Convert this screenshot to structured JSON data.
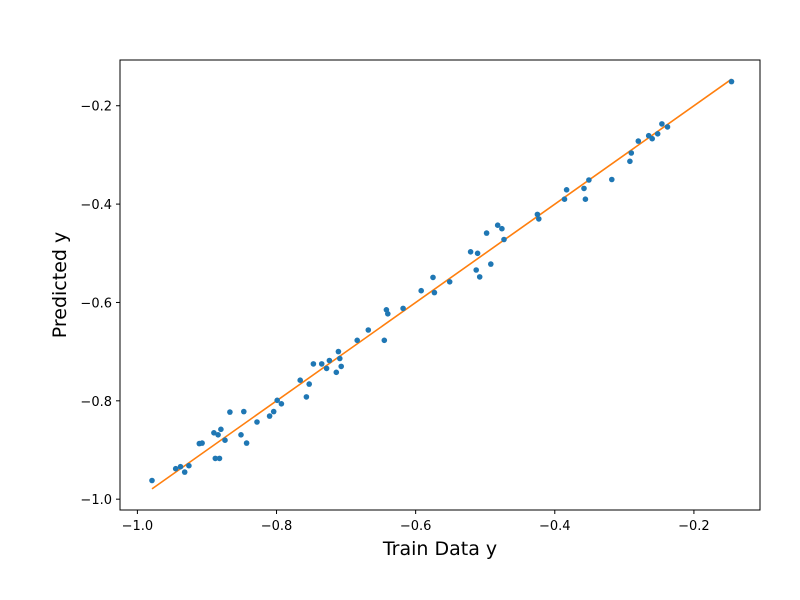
{
  "chart_data": {
    "type": "scatter",
    "xlabel": "Train Data y",
    "ylabel": "Predicted y",
    "xlim": [
      -1.025,
      -0.105
    ],
    "ylim": [
      -1.022,
      -0.107
    ],
    "xticks": [
      -1.0,
      -0.8,
      -0.6,
      -0.4,
      -0.2
    ],
    "xtick_labels": [
      "−1.0",
      "−0.8",
      "−0.6",
      "−0.4",
      "−0.2"
    ],
    "yticks": [
      -1.0,
      -0.8,
      -0.6,
      -0.4,
      -0.2
    ],
    "ytick_labels": [
      "−1.0",
      "−0.8",
      "−0.6",
      "−0.4",
      "−0.2"
    ],
    "grid": false,
    "series": [
      {
        "kind": "scatter",
        "color": "#1f77b4",
        "points": [
          [
            -0.979,
            -0.962
          ],
          [
            -0.945,
            -0.938
          ],
          [
            -0.938,
            -0.934
          ],
          [
            -0.932,
            -0.945
          ],
          [
            -0.926,
            -0.932
          ],
          [
            -0.911,
            -0.887
          ],
          [
            -0.907,
            -0.886
          ],
          [
            -0.89,
            -0.865
          ],
          [
            -0.888,
            -0.917
          ],
          [
            -0.884,
            -0.869
          ],
          [
            -0.882,
            -0.917
          ],
          [
            -0.88,
            -0.858
          ],
          [
            -0.874,
            -0.88
          ],
          [
            -0.867,
            -0.823
          ],
          [
            -0.851,
            -0.869
          ],
          [
            -0.847,
            -0.822
          ],
          [
            -0.843,
            -0.886
          ],
          [
            -0.828,
            -0.843
          ],
          [
            -0.81,
            -0.831
          ],
          [
            -0.804,
            -0.822
          ],
          [
            -0.799,
            -0.799
          ],
          [
            -0.793,
            -0.806
          ],
          [
            -0.766,
            -0.758
          ],
          [
            -0.757,
            -0.792
          ],
          [
            -0.753,
            -0.766
          ],
          [
            -0.747,
            -0.725
          ],
          [
            -0.735,
            -0.725
          ],
          [
            -0.728,
            -0.734
          ],
          [
            -0.724,
            -0.718
          ],
          [
            -0.714,
            -0.742
          ],
          [
            -0.711,
            -0.7
          ],
          [
            -0.709,
            -0.714
          ],
          [
            -0.707,
            -0.73
          ],
          [
            -0.684,
            -0.677
          ],
          [
            -0.668,
            -0.656
          ],
          [
            -0.645,
            -0.677
          ],
          [
            -0.642,
            -0.615
          ],
          [
            -0.64,
            -0.623
          ],
          [
            -0.618,
            -0.612
          ],
          [
            -0.592,
            -0.576
          ],
          [
            -0.575,
            -0.549
          ],
          [
            -0.573,
            -0.58
          ],
          [
            -0.551,
            -0.558
          ],
          [
            -0.521,
            -0.497
          ],
          [
            -0.513,
            -0.534
          ],
          [
            -0.511,
            -0.5
          ],
          [
            -0.508,
            -0.548
          ],
          [
            -0.498,
            -0.459
          ],
          [
            -0.492,
            -0.522
          ],
          [
            -0.482,
            -0.443
          ],
          [
            -0.476,
            -0.45
          ],
          [
            -0.473,
            -0.472
          ],
          [
            -0.425,
            -0.421
          ],
          [
            -0.423,
            -0.43
          ],
          [
            -0.386,
            -0.39
          ],
          [
            -0.383,
            -0.371
          ],
          [
            -0.358,
            -0.368
          ],
          [
            -0.356,
            -0.39
          ],
          [
            -0.351,
            -0.351
          ],
          [
            -0.318,
            -0.35
          ],
          [
            -0.292,
            -0.313
          ],
          [
            -0.29,
            -0.296
          ],
          [
            -0.28,
            -0.272
          ],
          [
            -0.265,
            -0.261
          ],
          [
            -0.26,
            -0.267
          ],
          [
            -0.252,
            -0.257
          ],
          [
            -0.246,
            -0.237
          ],
          [
            -0.238,
            -0.243
          ],
          [
            -0.146,
            -0.151
          ]
        ]
      },
      {
        "kind": "line",
        "color": "#ff7f0e",
        "x": [
          -0.979,
          -0.146
        ],
        "y": [
          -0.979,
          -0.146
        ]
      }
    ]
  }
}
